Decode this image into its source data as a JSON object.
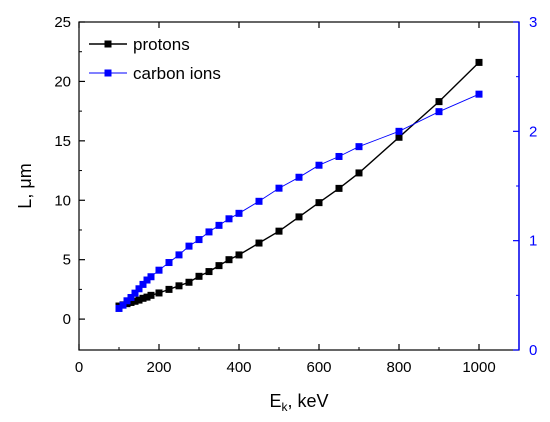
{
  "chart_data": {
    "type": "line",
    "xlabel": "E",
    "xlabel_subscript": "k",
    "xlabel_unit": ", keV",
    "ylabel": "L, μm",
    "y2label": "",
    "xlim": [
      0,
      1100
    ],
    "ylim": [
      -2.6,
      25
    ],
    "y2lim": [
      0,
      3
    ],
    "x_ticks": [
      0,
      200,
      400,
      600,
      800,
      1000
    ],
    "y_ticks": [
      0,
      5,
      10,
      15,
      20,
      25
    ],
    "y2_ticks": [
      0,
      1,
      2,
      3
    ],
    "legend_position": "top-left",
    "grid": false,
    "series": [
      {
        "name": "protons",
        "axis": "left",
        "color": "#000000",
        "marker": "square",
        "x": [
          100,
          110,
          120,
          130,
          140,
          150,
          160,
          170,
          180,
          200,
          225,
          250,
          275,
          300,
          325,
          350,
          375,
          400,
          450,
          500,
          550,
          600,
          650,
          700,
          800,
          900,
          1000
        ],
        "y": [
          1.1,
          1.2,
          1.3,
          1.4,
          1.5,
          1.6,
          1.75,
          1.85,
          2.0,
          2.2,
          2.5,
          2.8,
          3.1,
          3.6,
          4.0,
          4.5,
          5.0,
          5.4,
          6.4,
          7.4,
          8.6,
          9.8,
          11.0,
          12.3,
          15.3,
          18.3,
          21.6
        ]
      },
      {
        "name": "carbon ions",
        "axis": "right",
        "color": "#0000ff",
        "marker": "square",
        "x": [
          100,
          110,
          120,
          130,
          140,
          150,
          160,
          170,
          180,
          200,
          225,
          250,
          275,
          300,
          325,
          350,
          375,
          400,
          450,
          500,
          550,
          600,
          650,
          700,
          800,
          900,
          1000
        ],
        "y": [
          0.38,
          0.41,
          0.45,
          0.48,
          0.52,
          0.56,
          0.6,
          0.64,
          0.67,
          0.73,
          0.8,
          0.87,
          0.95,
          1.01,
          1.08,
          1.14,
          1.2,
          1.25,
          1.36,
          1.48,
          1.58,
          1.69,
          1.77,
          1.86,
          2.0,
          2.18,
          2.34
        ]
      }
    ]
  }
}
